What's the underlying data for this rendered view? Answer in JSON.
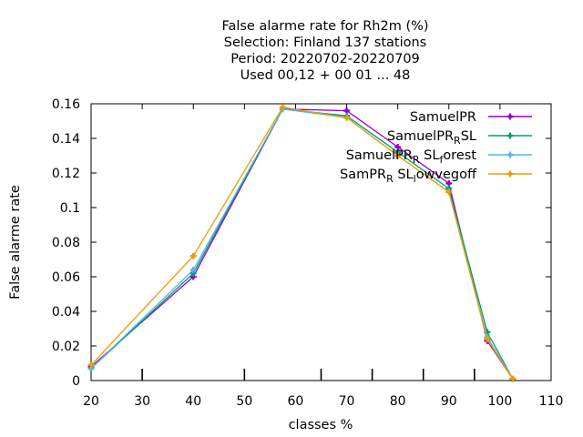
{
  "chart_data": {
    "type": "line",
    "title_lines": [
      "False alarme rate  for Rh2m (%)",
      "Selection: Finland    137 stations",
      "Period: 20220702-20220709",
      "Used  00,12  + 00 01 ... 48"
    ],
    "xlabel": "classes %",
    "ylabel": "False alarme rate",
    "xlim": [
      20,
      110
    ],
    "ylim": [
      0,
      0.16
    ],
    "x_ticks": [
      20,
      30,
      40,
      50,
      60,
      70,
      80,
      90,
      100,
      110
    ],
    "x_tick_labels": [
      "20",
      "30",
      "40",
      "50",
      "60",
      "70",
      "80",
      "90",
      "100",
      "110"
    ],
    "y_ticks": [
      0,
      0.02,
      0.04,
      0.06,
      0.08,
      0.1,
      0.12,
      0.14,
      0.16
    ],
    "y_tick_labels": [
      "0",
      "0.02",
      "0.04",
      "0.06",
      "0.08",
      "0.1",
      "0.12",
      "0.14",
      "0.16"
    ],
    "x_bottom_minor_ticks": [
      30,
      50,
      65,
      75,
      85,
      95
    ],
    "grid": false,
    "legend_position": "top-right",
    "x": [
      20,
      40,
      57.5,
      70,
      80,
      90,
      97.5,
      102.5
    ],
    "series": [
      {
        "name": "SamuelPR",
        "legend_parts": [
          [
            "SamuelPR",
            false
          ]
        ],
        "color": "#9400d3",
        "values": [
          0.008,
          0.06,
          0.157,
          0.156,
          0.135,
          0.114,
          0.023,
          0.001
        ]
      },
      {
        "name": "SamuelPR_R SL",
        "legend_parts": [
          [
            "SamuelPR",
            false
          ],
          [
            "R",
            true
          ],
          [
            "SL",
            false
          ]
        ],
        "color": "#009e73",
        "values": [
          0.007,
          0.062,
          0.157,
          0.153,
          0.132,
          0.111,
          0.028,
          0.001
        ]
      },
      {
        "name": "SamuelPR_R SL_f orest",
        "legend_parts": [
          [
            "SamuelPR",
            false
          ],
          [
            "R",
            true
          ],
          [
            " SL",
            false
          ],
          [
            "f",
            true
          ],
          [
            "orest",
            false
          ]
        ],
        "color": "#56b4e9",
        "values": [
          0.007,
          0.064,
          0.157,
          0.152,
          0.13,
          0.109,
          0.025,
          0.001
        ]
      },
      {
        "name": "SamPR_R SL_l owvegoff",
        "legend_parts": [
          [
            "SamPR",
            false
          ],
          [
            "R",
            true
          ],
          [
            " SL",
            false
          ],
          [
            "l",
            true
          ],
          [
            "owvegoff",
            false
          ]
        ],
        "color": "#e69f00",
        "values": [
          0.009,
          0.072,
          0.158,
          0.152,
          0.13,
          0.109,
          0.024,
          0.001
        ]
      }
    ]
  }
}
